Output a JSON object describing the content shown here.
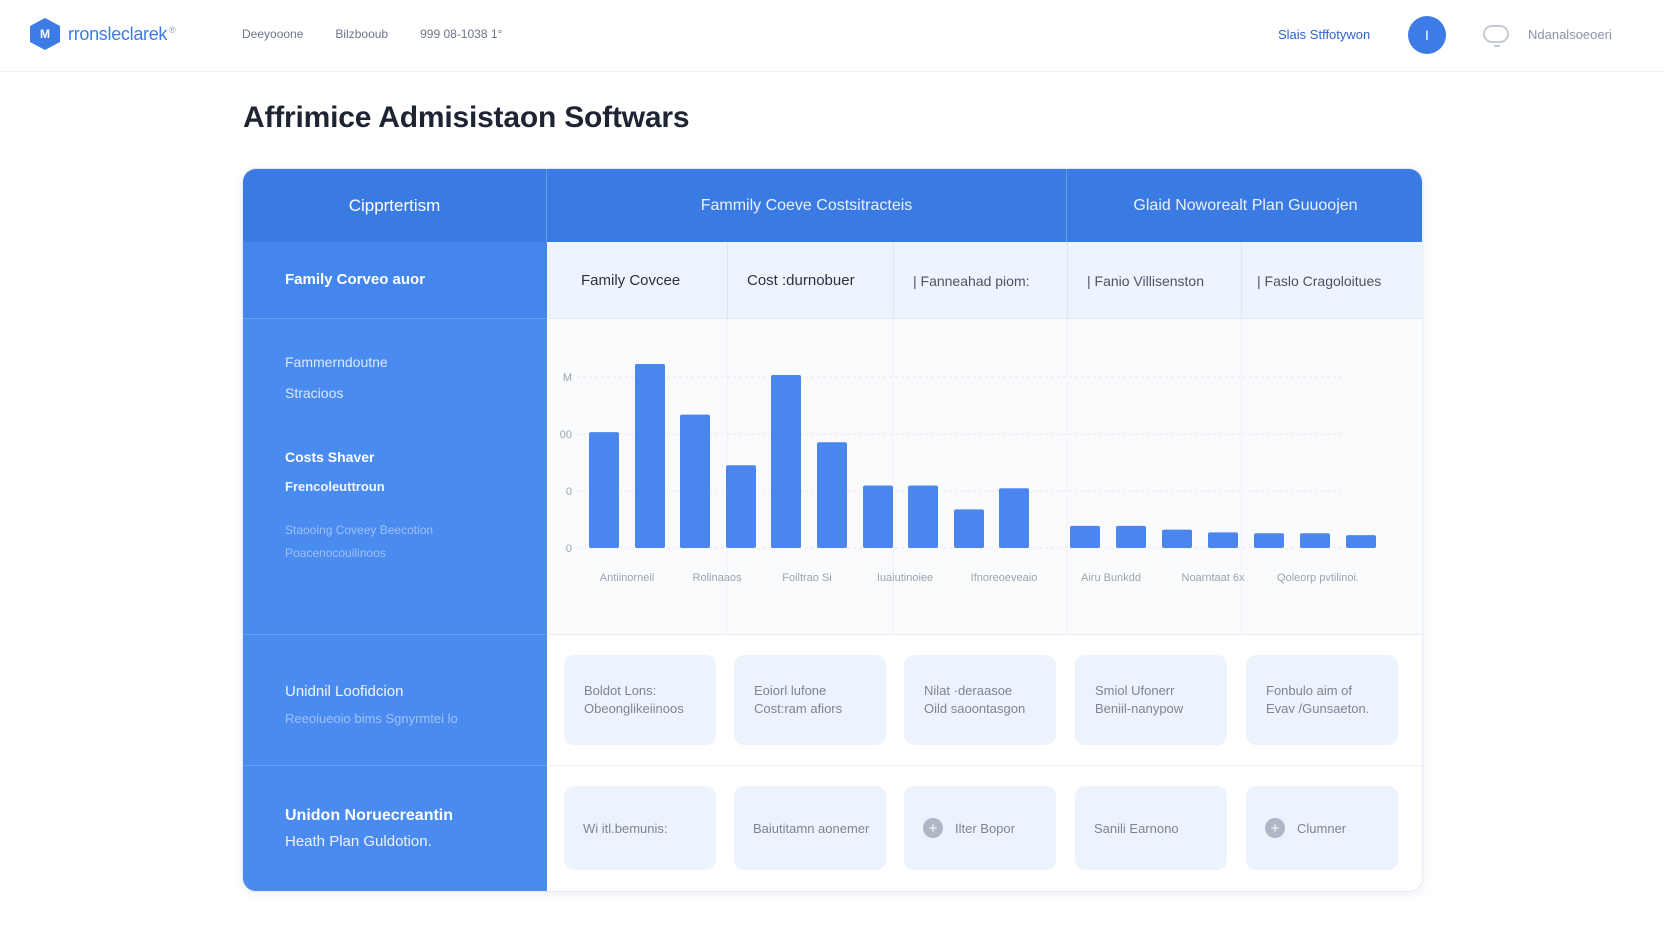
{
  "header": {
    "logo_mark": "M",
    "logo_text": "rronsleclarek",
    "logo_sup": "®",
    "nav": [
      "Deeyooone",
      "Bilzbooub",
      "999 08-1038 1°"
    ],
    "sign_link": "Slais Stffotywon",
    "avatar_label": "I",
    "admin_link": "Ndanalsoeoeri"
  },
  "page": {
    "title": "Affrimice Admisistaon Softwars"
  },
  "table": {
    "headers": [
      "Cipprtertism",
      "Fammily Coeve Costsitracteis",
      "Glaid Noworealt Plan Guuoojen"
    ],
    "left": {
      "s1": "Family Corveo auor",
      "s2": {
        "line1": "Fammerndoutne",
        "line2": "Stracioos",
        "line3": "Costs Shaver",
        "line4": "Frencoleuttroun",
        "line5": "Staooing Coveey Beecotion",
        "line6": "Poacenocouilinoos"
      },
      "s3": {
        "title": "Unidnil Loofidcion",
        "sub": "Reeoiueoio bims Sgnyrmtei lo"
      },
      "s4": {
        "title": "Unidon Noruecreantin",
        "sub": "Heath Plan Guldotion."
      }
    },
    "subheaders": [
      "Family Covcee",
      "Cost :durnobuer",
      "| Fanneahad piom:",
      "| Fanio Villisenston",
      "| Faslo Cragoloitues"
    ],
    "tiles_row3": [
      [
        "Boldot Lons:",
        "Obeonglikeiinoos"
      ],
      [
        "Eoiorl lufone",
        "Cost:ram afiors"
      ],
      [
        "Nilat ·deraasoe",
        "Oild saoontasgon"
      ],
      [
        "Smiol Ufonerr",
        "Beniil-nanypow"
      ],
      [
        "Fonbulo aim of",
        "Evav /Gunsaeton."
      ]
    ],
    "tiles_row4": [
      {
        "label": "Wi itl.bemunis:",
        "icon": ""
      },
      {
        "label": "Baiutitamn aonemer",
        "icon": ""
      },
      {
        "label": "Ilter Bopor",
        "icon": "plus-icon"
      },
      {
        "label": "Sanili Earnono",
        "icon": ""
      },
      {
        "label": "Clumner",
        "icon": "plus-icon"
      }
    ]
  },
  "chart_data": {
    "type": "bar",
    "y_ticks": [
      "0",
      "0",
      "00",
      "M"
    ],
    "ylim": [
      0,
      200
    ],
    "categories_labels": [
      "Antiinorneil",
      "Rolinaaos",
      "Foiltrao Si",
      "Iuaiutinoiee",
      "Ifnoreoeveaio",
      "Airu Bunkdd",
      "Noarntaat 6x",
      "Qoleorp pvtilinoi."
    ],
    "series": [
      {
        "values": [
          126,
          200,
          145,
          90,
          188,
          115,
          68,
          68,
          42,
          65,
          24,
          24,
          20,
          17,
          16,
          16,
          14
        ]
      }
    ],
    "colors": {
      "bar": "#4a86ee",
      "grid": "#e6eaf0",
      "label": "#9aa3b2"
    }
  }
}
